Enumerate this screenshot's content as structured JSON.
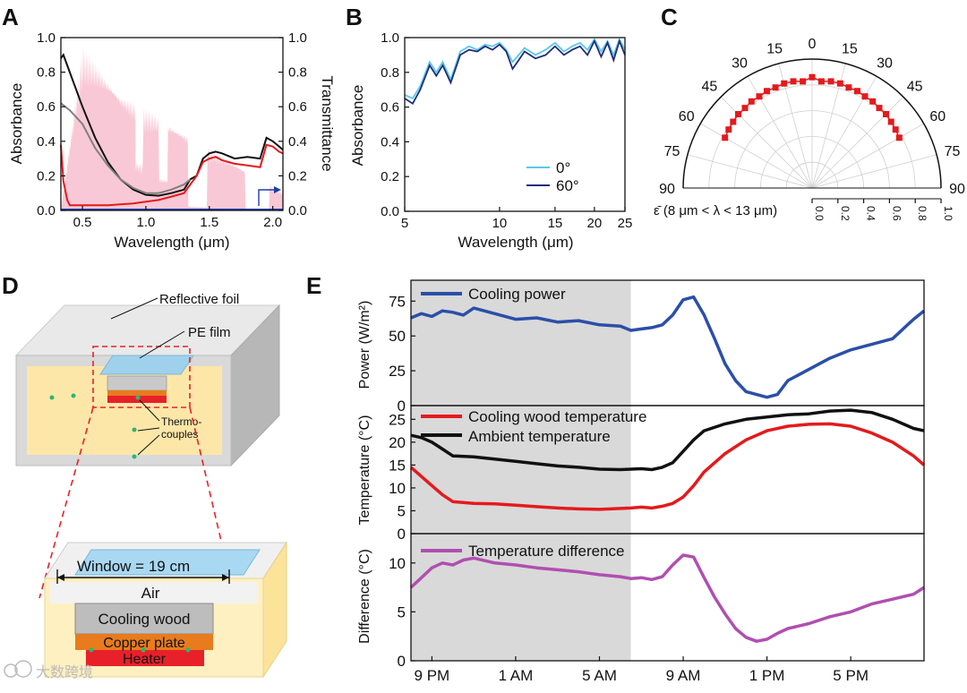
{
  "panels": {
    "A": {
      "label": "A",
      "xlabel": "Wavelength (μm)",
      "ylabel_left": "Absorbance",
      "ylabel_right": "Transmittance",
      "yticks": [
        "0.0",
        "0.2",
        "0.4",
        "0.6",
        "0.8",
        "1.0"
      ],
      "xticks": [
        "0.5",
        "1.0",
        "1.5",
        "2.0"
      ],
      "colors": {
        "black": "#111111",
        "red": "#e41a1c",
        "gray": "#808080",
        "pink": "#f9c8d6",
        "blue": "#1a3faa"
      }
    },
    "B": {
      "label": "B",
      "xlabel": "Wavelength (μm)",
      "ylabel": "Absorbance",
      "yticks": [
        "0.0",
        "0.2",
        "0.4",
        "0.6",
        "0.8",
        "1.0"
      ],
      "xticks": [
        "5",
        "10",
        "15",
        "20",
        "25"
      ],
      "legend": [
        "0°",
        "60°"
      ],
      "colors": {
        "s0": "#5bc8e8",
        "s60": "#1f2d7a"
      }
    },
    "C": {
      "label": "C",
      "angles": [
        "0",
        "15",
        "30",
        "45",
        "60",
        "75",
        "90"
      ],
      "radial_ticks": [
        "0.0",
        "0.2",
        "0.4",
        "0.6",
        "0.8",
        "1.0"
      ],
      "axis_label": "ε̄ (8 μm < λ < 13 μm)",
      "color": "#e41a1c"
    },
    "D": {
      "label": "D",
      "reflective_foil": "Reflective foil",
      "pe_film": "PE film",
      "thermocouples_line1": "Thermo-",
      "thermocouples_line2": "couples",
      "window": "Window = 19 cm",
      "air": "Air",
      "cooling_wood": "Cooling wood",
      "copper_plate": "Copper plate",
      "heater": "Heater"
    },
    "E": {
      "label": "E",
      "xticks": [
        "9 PM",
        "1 AM",
        "5 AM",
        "9 AM",
        "1 PM",
        "5 PM"
      ],
      "power": {
        "ylabel": "Power (W/m²)",
        "yticks": [
          "0",
          "25",
          "50",
          "75"
        ],
        "legend": "Cooling power",
        "color": "#2b4fa8"
      },
      "temperature": {
        "ylabel": "Temperature (°C)",
        "yticks": [
          "0",
          "5",
          "10",
          "15",
          "20",
          "25"
        ],
        "legend_wood": "Cooling wood temperature",
        "legend_ambient": "Ambient temperature",
        "color_wood": "#e41a1c",
        "color_ambient": "#111111"
      },
      "difference": {
        "ylabel": "Difference (°C)",
        "yticks": [
          "0",
          "5",
          "10"
        ],
        "legend": "Temperature difference",
        "color": "#b04fb0"
      }
    }
  },
  "watermark": "大数跨境",
  "chart_data": [
    {
      "type": "line",
      "panel": "A",
      "xlabel": "Wavelength (μm)",
      "ylabel": "Absorbance",
      "xlim": [
        0.33,
        2.08
      ],
      "ylim": [
        0,
        1
      ],
      "series": [
        {
          "x": [
            0.33,
            0.35,
            0.4,
            0.5,
            0.6,
            0.7,
            0.8,
            0.9,
            1.0,
            1.1,
            1.2,
            1.3,
            1.35,
            1.4,
            1.45,
            1.5,
            1.55,
            1.6,
            1.7,
            1.8,
            1.9,
            1.95,
            2.0,
            2.05,
            2.08
          ],
          "values": [
            0.88,
            0.9,
            0.8,
            0.6,
            0.42,
            0.28,
            0.18,
            0.12,
            0.09,
            0.085,
            0.1,
            0.12,
            0.18,
            0.2,
            0.3,
            0.33,
            0.34,
            0.33,
            0.3,
            0.31,
            0.3,
            0.42,
            0.4,
            0.37,
            0.35
          ]
        },
        {
          "x": [
            0.33,
            0.35,
            0.38,
            0.4,
            0.5,
            0.7,
            0.9,
            1.0,
            1.1,
            1.2,
            1.3,
            1.35,
            1.4,
            1.45,
            1.5,
            1.55,
            1.6,
            1.7,
            1.8,
            1.9,
            1.95,
            2.0,
            2.05,
            2.08
          ],
          "values": [
            0.38,
            0.17,
            0.06,
            0.03,
            0.03,
            0.03,
            0.04,
            0.05,
            0.06,
            0.08,
            0.1,
            0.15,
            0.2,
            0.28,
            0.3,
            0.31,
            0.29,
            0.27,
            0.26,
            0.25,
            0.38,
            0.37,
            0.34,
            0.33
          ]
        },
        {
          "x": [
            0.33,
            0.4,
            0.5,
            0.6,
            0.7,
            0.8,
            0.9,
            1.0,
            1.1,
            1.2,
            1.3,
            1.35
          ],
          "values": [
            0.62,
            0.58,
            0.5,
            0.36,
            0.26,
            0.18,
            0.13,
            0.1,
            0.1,
            0.12,
            0.15,
            0.18
          ]
        },
        {
          "x": [
            0.33,
            2.08
          ],
          "values": [
            0.005,
            0.005
          ]
        }
      ]
    },
    {
      "type": "line",
      "panel": "B",
      "xlabel": "Wavelength (μm)",
      "ylabel": "Absorbance",
      "xlim": [
        5,
        25
      ],
      "ylim": [
        0,
        1
      ],
      "series": [
        {
          "name": "0°",
          "x": [
            5,
            5.3,
            5.6,
            6,
            6.3,
            6.6,
            7,
            7.5,
            8,
            8.5,
            9,
            9.5,
            10,
            10.5,
            11,
            11.5,
            12,
            13,
            14,
            15,
            16,
            17,
            18,
            19,
            20,
            21,
            22,
            23,
            24,
            25
          ],
          "values": [
            0.67,
            0.65,
            0.72,
            0.86,
            0.8,
            0.86,
            0.76,
            0.92,
            0.95,
            0.93,
            0.96,
            0.95,
            0.97,
            0.93,
            0.86,
            0.9,
            0.94,
            0.9,
            0.93,
            0.97,
            0.92,
            0.95,
            0.97,
            0.93,
            0.99,
            0.92,
            0.98,
            0.9,
            0.99,
            0.93
          ]
        },
        {
          "name": "60°",
          "x": [
            5,
            5.3,
            5.6,
            6,
            6.3,
            6.6,
            7,
            7.5,
            8,
            8.5,
            9,
            9.5,
            10,
            10.5,
            11,
            11.5,
            12,
            13,
            14,
            15,
            16,
            17,
            18,
            19,
            20,
            21,
            22,
            23,
            24,
            25
          ],
          "values": [
            0.65,
            0.62,
            0.7,
            0.84,
            0.78,
            0.84,
            0.74,
            0.9,
            0.93,
            0.92,
            0.95,
            0.93,
            0.96,
            0.92,
            0.82,
            0.87,
            0.92,
            0.88,
            0.9,
            0.95,
            0.9,
            0.93,
            0.95,
            0.9,
            0.98,
            0.89,
            0.97,
            0.87,
            0.98,
            0.9
          ]
        }
      ]
    },
    {
      "type": "scatter",
      "panel": "C",
      "angles": [
        -60,
        -55,
        -50,
        -45,
        -40,
        -35,
        -30,
        -25,
        -20,
        -15,
        -10,
        -5,
        0,
        5,
        10,
        15,
        20,
        25,
        30,
        35,
        40,
        45,
        50,
        55,
        60
      ],
      "values": [
        0.78,
        0.79,
        0.8,
        0.81,
        0.81,
        0.82,
        0.82,
        0.83,
        0.83,
        0.84,
        0.84,
        0.83,
        0.86,
        0.83,
        0.84,
        0.84,
        0.83,
        0.83,
        0.82,
        0.82,
        0.81,
        0.81,
        0.8,
        0.79,
        0.78
      ]
    },
    {
      "type": "line",
      "panel": "E-power",
      "ylabel": "Power (W/m²)",
      "ylim": [
        0,
        90
      ],
      "xlim": [
        -4,
        20.5
      ],
      "x_note": "hours after midnight; 9 PM = -3, 1 AM = 1, 5 AM = 5, 9 AM = 9, 1 PM = 13, 5 PM = 17",
      "shaded": [
        -4,
        6.5
      ],
      "series": [
        {
          "name": "Cooling power",
          "x": [
            -4,
            -3.5,
            -3,
            -2.5,
            -2,
            -1.5,
            -1,
            0,
            1,
            2,
            3,
            4,
            5,
            6,
            6.5,
            7,
            7.5,
            8,
            8.5,
            9,
            9.5,
            10,
            10.5,
            11,
            11.5,
            12,
            12.5,
            13,
            13.5,
            14,
            14.5,
            15,
            16,
            17,
            18,
            19,
            20,
            20.5
          ],
          "values": [
            63,
            66,
            64,
            68,
            67,
            65,
            70,
            66,
            62,
            63,
            60,
            61,
            58,
            57,
            54,
            55,
            56,
            58,
            65,
            76,
            78,
            65,
            48,
            30,
            18,
            10,
            8,
            6,
            8,
            18,
            22,
            26,
            34,
            40,
            44,
            48,
            62,
            68
          ]
        }
      ]
    },
    {
      "type": "line",
      "panel": "E-temperature",
      "ylabel": "Temperature (°C)",
      "ylim": [
        0,
        28
      ],
      "xlim": [
        -4,
        20.5
      ],
      "shaded": [
        -4,
        6.5
      ],
      "series": [
        {
          "name": "Cooling wood temperature",
          "x": [
            -4,
            -3.5,
            -3,
            -2.5,
            -2,
            -1,
            0,
            1,
            2,
            3,
            4,
            5,
            6,
            6.5,
            7,
            7.5,
            8,
            8.5,
            9,
            9.5,
            10,
            11,
            12,
            13,
            14,
            15,
            16,
            17,
            18,
            19,
            20,
            20.5
          ],
          "values": [
            14.5,
            12.5,
            10.5,
            8.5,
            7,
            6.6,
            6.5,
            6.2,
            5.9,
            5.6,
            5.4,
            5.3,
            5.5,
            5.6,
            5.8,
            5.6,
            6,
            6.6,
            8,
            10.5,
            13.5,
            17.5,
            20.5,
            22.5,
            23.5,
            23.9,
            24,
            23.5,
            22,
            20,
            17,
            15
          ]
        },
        {
          "name": "Ambient temperature",
          "x": [
            -4,
            -3.5,
            -3,
            -2.5,
            -2,
            -1,
            0,
            1,
            2,
            3,
            4,
            5,
            6,
            6.5,
            7,
            7.5,
            8,
            8.5,
            9,
            9.5,
            10,
            11,
            12,
            13,
            14,
            15,
            16,
            17,
            18,
            19,
            20,
            20.5
          ],
          "values": [
            21.5,
            21,
            20,
            18.5,
            17,
            16.8,
            16.3,
            15.8,
            15.3,
            14.8,
            14.5,
            14.1,
            14,
            14.1,
            14.2,
            14,
            14.5,
            15.5,
            18,
            20.5,
            22.5,
            24,
            25,
            25.5,
            26,
            26.2,
            26.8,
            27,
            26.5,
            25,
            23,
            22.5
          ]
        }
      ]
    },
    {
      "type": "line",
      "panel": "E-difference",
      "ylabel": "Difference (°C)",
      "ylim": [
        0,
        13
      ],
      "xlim": [
        -4,
        20.5
      ],
      "shaded": [
        -4,
        6.5
      ],
      "series": [
        {
          "name": "Temperature difference",
          "x": [
            -4,
            -3.5,
            -3,
            -2.5,
            -2,
            -1.5,
            -1,
            0,
            1,
            2,
            3,
            4,
            5,
            6,
            6.5,
            7,
            7.5,
            8,
            8.5,
            9,
            9.5,
            10,
            10.5,
            11,
            11.5,
            12,
            12.5,
            13,
            13.5,
            14,
            15,
            16,
            17,
            18,
            19,
            20,
            20.5
          ],
          "values": [
            7.5,
            8.5,
            9.5,
            10,
            9.8,
            10.3,
            10.5,
            10,
            9.8,
            9.5,
            9.3,
            9.1,
            8.8,
            8.6,
            8.4,
            8.5,
            8.3,
            8.6,
            9.8,
            10.8,
            10.6,
            8.5,
            6.5,
            4.8,
            3.3,
            2.4,
            2,
            2.2,
            2.8,
            3.3,
            3.8,
            4.5,
            5,
            5.8,
            6.3,
            6.8,
            7.5
          ]
        }
      ]
    }
  ]
}
